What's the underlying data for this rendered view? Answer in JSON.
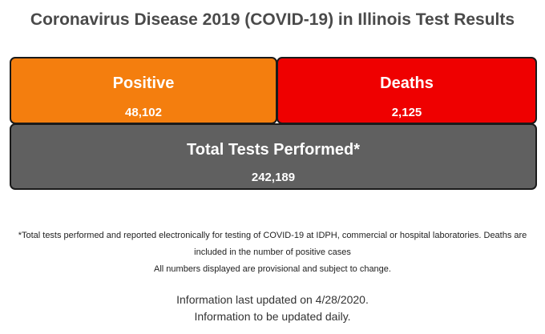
{
  "title": "Coronavirus Disease 2019 (COVID-19) in Illinois Test Results",
  "positive": {
    "label": "Positive",
    "value": "48,102",
    "color": "#f47e0e"
  },
  "deaths": {
    "label": "Deaths",
    "value": "2,125",
    "color": "#ef0000"
  },
  "total": {
    "label": "Total Tests Performed*",
    "value": "242,189",
    "color": "#606060"
  },
  "notes": {
    "line1": "*Total tests performed and reported electronically for testing of COVID-19 at IDPH, commercial or hospital laboratories. Deaths are",
    "line2": "included in the number of positive cases",
    "line3": "All numbers displayed are provisional and subject to change."
  },
  "update": {
    "line1": "Information last updated on 4/28/2020.",
    "line2": "Information to be updated daily."
  }
}
